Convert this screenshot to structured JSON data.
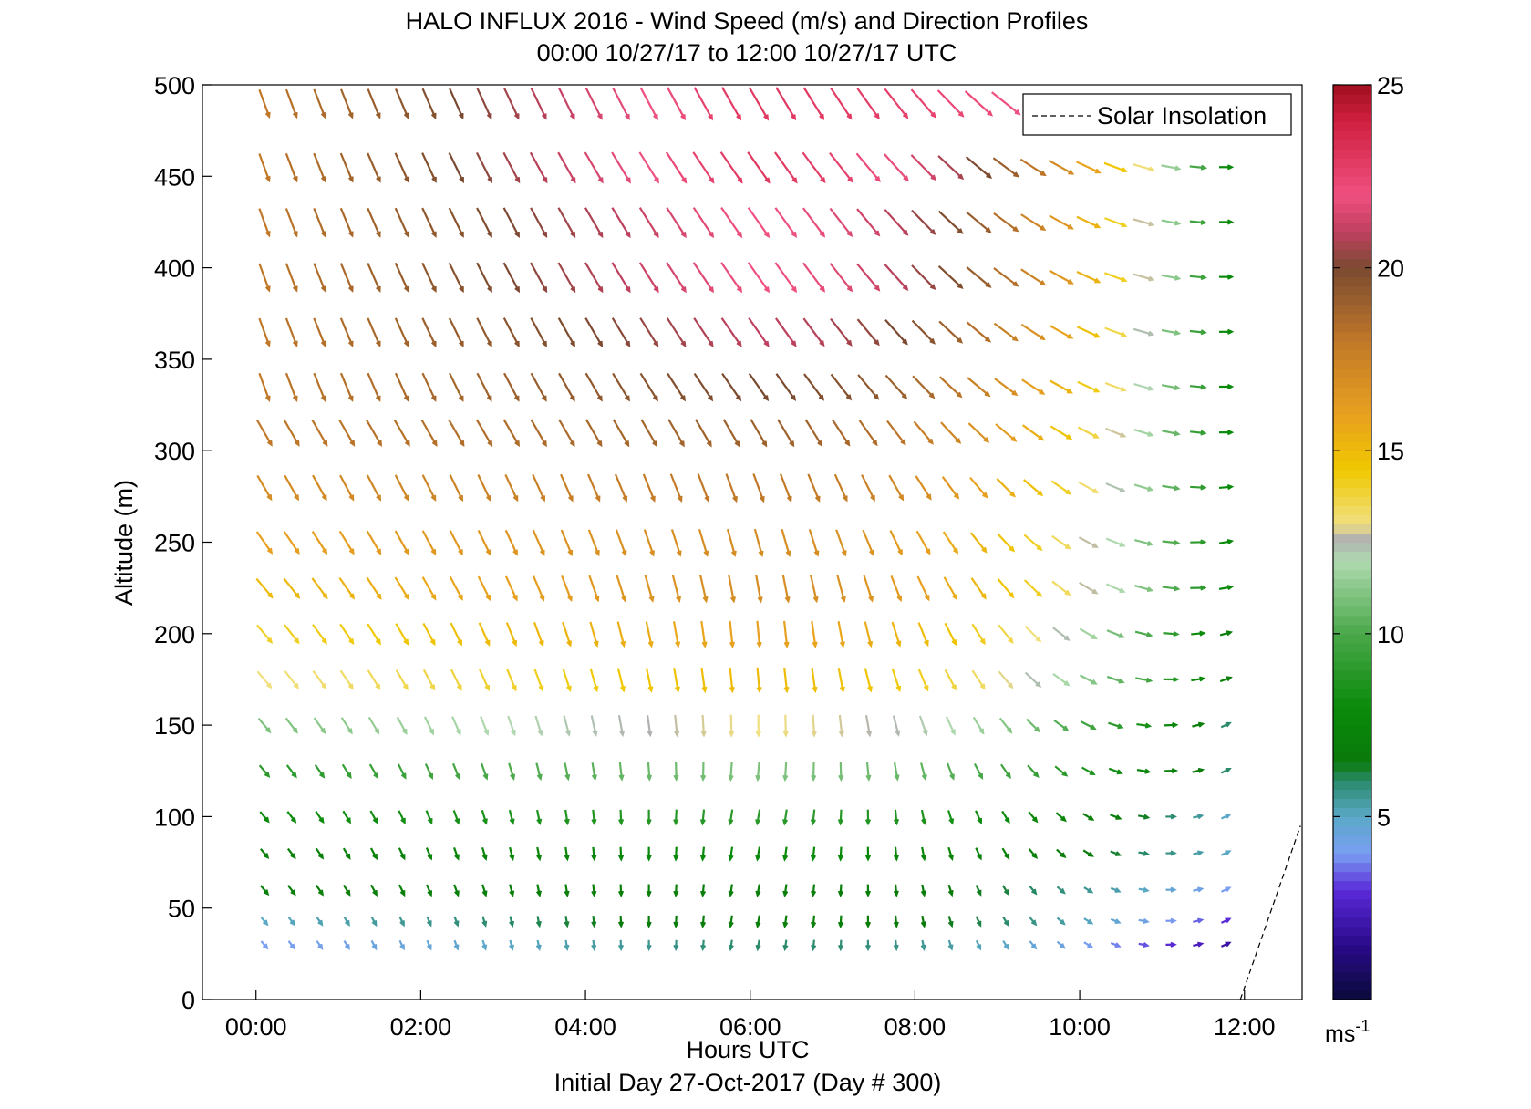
{
  "chart_data": {
    "type": "quiver",
    "title": "HALO INFLUX 2016 - Wind Speed (m/s) and Direction Profiles",
    "subtitle": "00:00 10/27/17 to 12:00 10/27/17  UTC",
    "xlabel": "Hours UTC",
    "ylabel": "Altitude (m)",
    "caption": "Initial Day 27-Oct-2017 (Day # 300)",
    "x_ticks": [
      "00:00",
      "02:00",
      "04:00",
      "06:00",
      "08:00",
      "10:00",
      "12:00"
    ],
    "x_tick_hours": [
      0,
      2,
      4,
      6,
      8,
      10,
      12
    ],
    "y_ticks": [
      0,
      50,
      100,
      150,
      200,
      250,
      300,
      350,
      400,
      450,
      500
    ],
    "xlim_hours": [
      -0.65,
      12.7
    ],
    "ylim": [
      0,
      500
    ],
    "legend": {
      "label": "Solar Insolation",
      "placement": "top-right",
      "style": "dashed"
    },
    "colorbar": {
      "unit_label": "ms",
      "unit_exponent": "-1",
      "ticks": [
        5,
        10,
        15,
        20,
        25
      ],
      "range": [
        0,
        25
      ]
    },
    "solar_insolation_line": {
      "x_hours": [
        11.95,
        12.68
      ],
      "y": [
        0,
        95
      ]
    },
    "grid": false,
    "time_hours": [
      0.1,
      0.43,
      0.77,
      1.1,
      1.43,
      1.77,
      2.1,
      2.43,
      2.77,
      3.1,
      3.43,
      3.77,
      4.1,
      4.43,
      4.77,
      5.1,
      5.43,
      5.77,
      6.1,
      6.43,
      6.77,
      7.1,
      7.43,
      7.77,
      8.1,
      8.43,
      8.77,
      9.1,
      9.43,
      9.77,
      10.1,
      10.43,
      10.77,
      11.1,
      11.43,
      11.77
    ],
    "altitudes_m": [
      30,
      43,
      60,
      80,
      100,
      125,
      150,
      175,
      200,
      225,
      250,
      280,
      310,
      335,
      365,
      395,
      425,
      455,
      490
    ],
    "profiles": [
      {
        "altitude": 490,
        "speed_start": 18,
        "speed_mid": 23,
        "speed_end": 19,
        "dir_start": 340,
        "dir_mid": 330,
        "dir_end": 265,
        "valid_until_hours": 9.4
      },
      {
        "altitude": 455,
        "speed_start": 18,
        "speed_mid": 23,
        "speed_end": 8,
        "dir_start": 340,
        "dir_mid": 325,
        "dir_end": 270
      },
      {
        "altitude": 425,
        "speed_start": 18,
        "speed_mid": 22,
        "speed_end": 8,
        "dir_start": 340,
        "dir_mid": 325,
        "dir_end": 270
      },
      {
        "altitude": 395,
        "speed_start": 18,
        "speed_mid": 22,
        "speed_end": 8,
        "dir_start": 340,
        "dir_mid": 325,
        "dir_end": 270
      },
      {
        "altitude": 365,
        "speed_start": 18,
        "speed_mid": 21,
        "speed_end": 8,
        "dir_start": 340,
        "dir_mid": 325,
        "dir_end": 270
      },
      {
        "altitude": 335,
        "speed_start": 18,
        "speed_mid": 20,
        "speed_end": 8,
        "dir_start": 340,
        "dir_mid": 325,
        "dir_end": 270
      },
      {
        "altitude": 310,
        "speed_start": 18,
        "speed_mid": 19,
        "speed_end": 8,
        "dir_start": 330,
        "dir_mid": 330,
        "dir_end": 270
      },
      {
        "altitude": 280,
        "speed_start": 17,
        "speed_mid": 18,
        "speed_end": 8,
        "dir_start": 330,
        "dir_mid": 340,
        "dir_end": 265
      },
      {
        "altitude": 250,
        "speed_start": 16,
        "speed_mid": 17,
        "speed_end": 8,
        "dir_start": 325,
        "dir_mid": 345,
        "dir_end": 260
      },
      {
        "altitude": 225,
        "speed_start": 15,
        "speed_mid": 17,
        "speed_end": 8,
        "dir_start": 320,
        "dir_mid": 350,
        "dir_end": 260
      },
      {
        "altitude": 200,
        "speed_start": 14,
        "speed_mid": 16,
        "speed_end": 7,
        "dir_start": 320,
        "dir_mid": 355,
        "dir_end": 255
      },
      {
        "altitude": 175,
        "speed_start": 13,
        "speed_mid": 15,
        "speed_end": 7,
        "dir_start": 320,
        "dir_mid": 355,
        "dir_end": 250
      },
      {
        "altitude": 150,
        "speed_start": 11,
        "speed_mid": 13,
        "speed_end": 6,
        "dir_start": 320,
        "dir_mid": 360,
        "dir_end": 245
      },
      {
        "altitude": 125,
        "speed_start": 9,
        "speed_mid": 11,
        "speed_end": 6,
        "dir_start": 320,
        "dir_mid": 5,
        "dir_end": 245
      },
      {
        "altitude": 100,
        "speed_start": 8,
        "speed_mid": 9,
        "speed_end": 5,
        "dir_start": 320,
        "dir_mid": 10,
        "dir_end": 245
      },
      {
        "altitude": 80,
        "speed_start": 7,
        "speed_mid": 8,
        "speed_end": 5,
        "dir_start": 320,
        "dir_mid": 10,
        "dir_end": 245
      },
      {
        "altitude": 60,
        "speed_start": 7,
        "speed_mid": 7,
        "speed_end": 4,
        "dir_start": 320,
        "dir_mid": 10,
        "dir_end": 245
      },
      {
        "altitude": 43,
        "speed_start": 5,
        "speed_mid": 7,
        "speed_end": 3,
        "dir_start": 320,
        "dir_mid": 10,
        "dir_end": 245
      },
      {
        "altitude": 30,
        "speed_start": 4,
        "speed_mid": 6,
        "speed_end": 2,
        "dir_start": 320,
        "dir_mid": 10,
        "dir_end": 245
      }
    ],
    "colormap": [
      [
        0,
        "#0a0a3a"
      ],
      [
        1.5,
        "#2a0a8a"
      ],
      [
        3,
        "#5a2ad8"
      ],
      [
        4,
        "#7a9ef2"
      ],
      [
        5,
        "#5aa8c8"
      ],
      [
        6,
        "#2a8a6a"
      ],
      [
        6.5,
        "#0a7a0a"
      ],
      [
        8,
        "#0a8a0a"
      ],
      [
        10,
        "#4aa84a"
      ],
      [
        12,
        "#b0dab0"
      ],
      [
        12.6,
        "#b0b0b0"
      ],
      [
        13,
        "#f0e080"
      ],
      [
        14.5,
        "#f0c800"
      ],
      [
        16,
        "#e8a020"
      ],
      [
        18,
        "#c07828"
      ],
      [
        20,
        "#7a4a30"
      ],
      [
        21,
        "#c04060"
      ],
      [
        22,
        "#f05080"
      ],
      [
        24,
        "#d02040"
      ],
      [
        25,
        "#a01020"
      ]
    ]
  }
}
